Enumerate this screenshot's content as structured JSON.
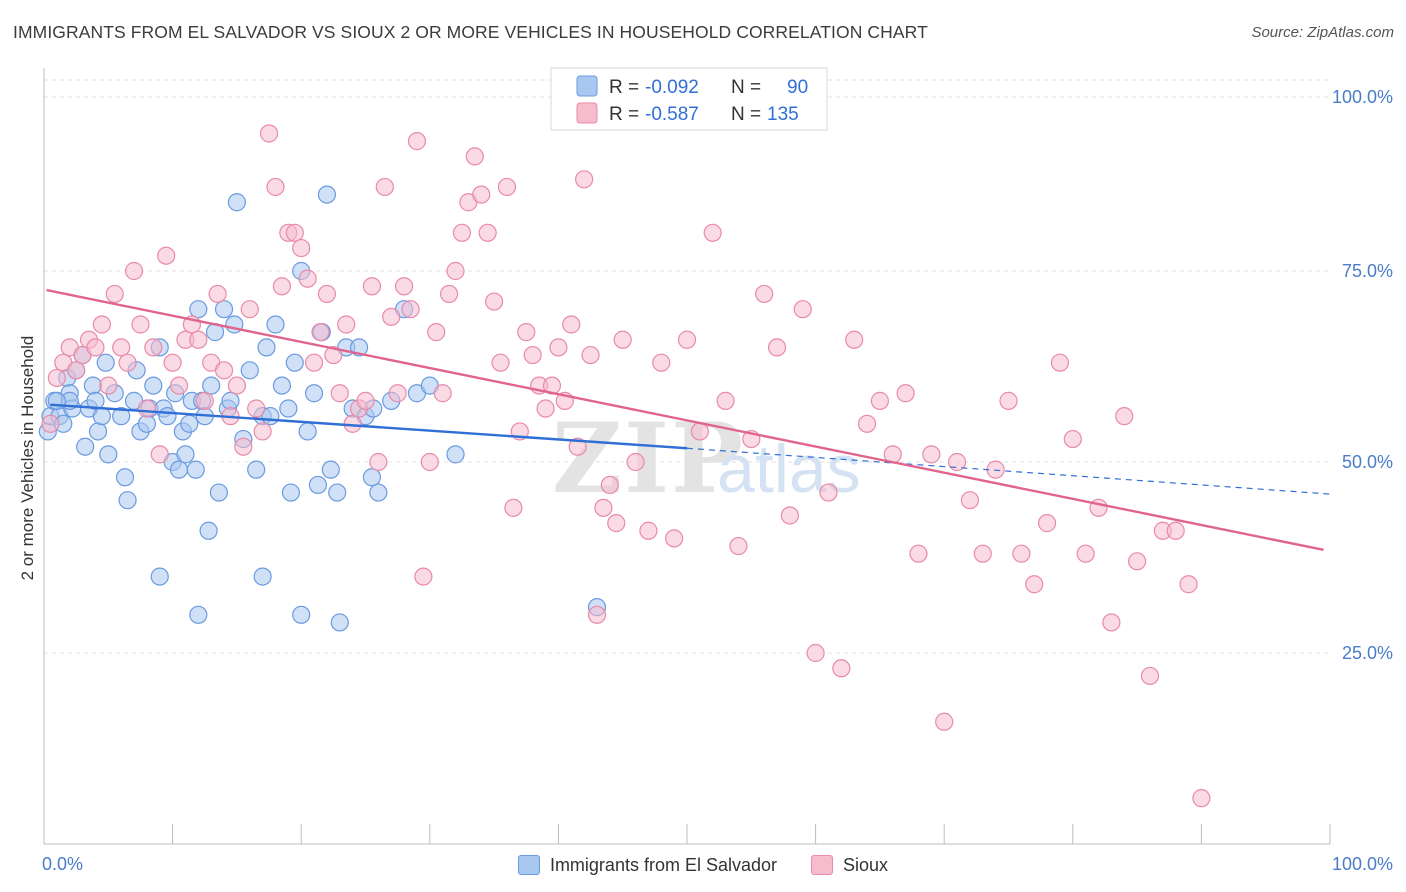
{
  "title": "IMMIGRANTS FROM EL SALVADOR VS SIOUX 2 OR MORE VEHICLES IN HOUSEHOLD CORRELATION CHART",
  "source": "Source: ZipAtlas.com",
  "watermark": {
    "zip": "ZIP",
    "atlas": "atlas"
  },
  "legend": {
    "r_label": "R =",
    "n_label": "N =",
    "entries": [
      {
        "r": "-0.092",
        "n": "90",
        "color": "#a9c8f0",
        "stroke": "#6a9ae0"
      },
      {
        "r": "-0.587",
        "n": "135",
        "color": "#f6bccd",
        "stroke": "#e98aa8"
      }
    ]
  },
  "chart_data": {
    "type": "scatter",
    "ylabel": "2 or more Vehicles in Household",
    "xlim": [
      0,
      100
    ],
    "ylim": [
      0,
      100
    ],
    "x_tick_labels": [
      "0.0%",
      "100.0%"
    ],
    "y_ticks": [
      {
        "value": 25,
        "label": "25.0%"
      },
      {
        "value": 50,
        "label": "50.0%"
      },
      {
        "value": 75,
        "label": "75.0%"
      },
      {
        "value": 100,
        "label": "100.0%"
      }
    ],
    "grid": true,
    "series": [
      {
        "name": "Immigrants from El Salvador",
        "color": "#a9c8f0",
        "stroke": "#6a9ae0",
        "line_color": "#2f6fd6",
        "trend": {
          "x0": 0.5,
          "y0": 57.5,
          "x1": 50,
          "y1": 51.8,
          "dash_to_x": 100,
          "dash_to_y": 45.8
        },
        "points": [
          [
            0.3,
            54
          ],
          [
            0.5,
            56
          ],
          [
            0.8,
            58
          ],
          [
            1.2,
            56
          ],
          [
            1.5,
            55
          ],
          [
            1.8,
            61
          ],
          [
            2.0,
            59
          ],
          [
            2.2,
            57
          ],
          [
            2.5,
            62
          ],
          [
            3.0,
            64
          ],
          [
            3.2,
            52
          ],
          [
            3.5,
            57
          ],
          [
            3.8,
            60
          ],
          [
            4.0,
            58
          ],
          [
            4.2,
            54
          ],
          [
            4.5,
            56
          ],
          [
            4.8,
            63
          ],
          [
            5.0,
            51
          ],
          [
            5.5,
            59
          ],
          [
            6.0,
            56
          ],
          [
            6.3,
            48
          ],
          [
            6.5,
            45
          ],
          [
            7.0,
            58
          ],
          [
            7.2,
            62
          ],
          [
            7.5,
            54
          ],
          [
            8.0,
            55
          ],
          [
            8.2,
            57
          ],
          [
            8.5,
            60
          ],
          [
            9.0,
            65
          ],
          [
            9.3,
            57
          ],
          [
            9.6,
            56
          ],
          [
            10.0,
            50
          ],
          [
            10.2,
            59
          ],
          [
            10.5,
            49
          ],
          [
            10.8,
            54
          ],
          [
            11.0,
            51
          ],
          [
            11.3,
            55
          ],
          [
            11.5,
            58
          ],
          [
            11.8,
            49
          ],
          [
            12.0,
            70
          ],
          [
            12.3,
            58
          ],
          [
            12.5,
            56
          ],
          [
            12.8,
            41
          ],
          [
            13.0,
            60
          ],
          [
            13.3,
            67
          ],
          [
            13.6,
            46
          ],
          [
            14.0,
            70
          ],
          [
            14.3,
            57
          ],
          [
            14.5,
            58
          ],
          [
            14.8,
            68
          ],
          [
            15.0,
            84
          ],
          [
            15.5,
            53
          ],
          [
            16.0,
            62
          ],
          [
            16.5,
            49
          ],
          [
            17.0,
            56
          ],
          [
            17.3,
            65
          ],
          [
            17.6,
            56
          ],
          [
            18.0,
            68
          ],
          [
            18.5,
            60
          ],
          [
            19.0,
            57
          ],
          [
            19.2,
            46
          ],
          [
            19.5,
            63
          ],
          [
            20.0,
            75
          ],
          [
            20.5,
            54
          ],
          [
            21.0,
            59
          ],
          [
            21.3,
            47
          ],
          [
            21.6,
            67
          ],
          [
            22.0,
            85
          ],
          [
            22.3,
            49
          ],
          [
            22.8,
            46
          ],
          [
            23.5,
            65
          ],
          [
            24.0,
            57
          ],
          [
            24.5,
            65
          ],
          [
            25.0,
            56
          ],
          [
            25.5,
            48
          ],
          [
            26.0,
            46
          ],
          [
            27.0,
            58
          ],
          [
            28.0,
            70
          ],
          [
            29.0,
            59
          ],
          [
            30.0,
            60
          ],
          [
            25.6,
            57
          ],
          [
            12.0,
            30
          ],
          [
            9.0,
            35
          ],
          [
            17.0,
            35
          ],
          [
            20.0,
            30
          ],
          [
            23.0,
            29
          ],
          [
            32.0,
            51
          ],
          [
            43.0,
            31
          ],
          [
            2.0,
            58
          ],
          [
            1.0,
            58
          ]
        ]
      },
      {
        "name": "Sioux",
        "color": "#f6bccd",
        "stroke": "#e98aa8",
        "line_color": "#e0648c",
        "trend": {
          "x0": 0.2,
          "y0": 72.5,
          "x1": 99.5,
          "y1": 38.5
        },
        "points": [
          [
            0.5,
            55
          ],
          [
            1.0,
            61
          ],
          [
            1.5,
            63
          ],
          [
            2.0,
            65
          ],
          [
            2.5,
            62
          ],
          [
            3.0,
            64
          ],
          [
            3.5,
            66
          ],
          [
            4.0,
            65
          ],
          [
            4.5,
            68
          ],
          [
            5.0,
            60
          ],
          [
            5.5,
            72
          ],
          [
            6.0,
            65
          ],
          [
            6.5,
            63
          ],
          [
            7.0,
            75
          ],
          [
            7.5,
            68
          ],
          [
            8.0,
            57
          ],
          [
            8.5,
            65
          ],
          [
            9.0,
            51
          ],
          [
            9.5,
            77
          ],
          [
            10.0,
            63
          ],
          [
            10.5,
            60
          ],
          [
            11.0,
            66
          ],
          [
            11.5,
            68
          ],
          [
            12.0,
            66
          ],
          [
            12.5,
            58
          ],
          [
            13.0,
            63
          ],
          [
            13.5,
            72
          ],
          [
            14.0,
            62
          ],
          [
            14.5,
            56
          ],
          [
            15.0,
            60
          ],
          [
            15.5,
            52
          ],
          [
            16.0,
            70
          ],
          [
            16.5,
            57
          ],
          [
            17.0,
            54
          ],
          [
            17.5,
            93
          ],
          [
            18.0,
            86
          ],
          [
            18.5,
            73
          ],
          [
            19.0,
            80
          ],
          [
            19.5,
            80
          ],
          [
            20.0,
            78
          ],
          [
            20.5,
            74
          ],
          [
            21.0,
            63
          ],
          [
            21.5,
            67
          ],
          [
            22.0,
            72
          ],
          [
            22.5,
            64
          ],
          [
            23.0,
            59
          ],
          [
            23.5,
            68
          ],
          [
            24.0,
            55
          ],
          [
            24.5,
            57
          ],
          [
            25.0,
            58
          ],
          [
            25.5,
            73
          ],
          [
            26.0,
            50
          ],
          [
            26.5,
            86
          ],
          [
            27.0,
            69
          ],
          [
            27.5,
            59
          ],
          [
            28.0,
            73
          ],
          [
            28.5,
            70
          ],
          [
            29.0,
            92
          ],
          [
            29.5,
            35
          ],
          [
            30.0,
            50
          ],
          [
            30.5,
            67
          ],
          [
            31.0,
            59
          ],
          [
            31.5,
            72
          ],
          [
            32.0,
            75
          ],
          [
            32.5,
            80
          ],
          [
            33.0,
            84
          ],
          [
            33.5,
            90
          ],
          [
            34.0,
            85
          ],
          [
            34.5,
            80
          ],
          [
            35.0,
            71
          ],
          [
            35.5,
            63
          ],
          [
            36.0,
            86
          ],
          [
            36.5,
            44
          ],
          [
            37.0,
            54
          ],
          [
            37.5,
            67
          ],
          [
            38.0,
            64
          ],
          [
            38.5,
            60
          ],
          [
            39.0,
            57
          ],
          [
            39.5,
            60
          ],
          [
            40.0,
            65
          ],
          [
            40.5,
            58
          ],
          [
            41.0,
            68
          ],
          [
            41.5,
            52
          ],
          [
            42.0,
            87
          ],
          [
            42.5,
            64
          ],
          [
            43.0,
            30
          ],
          [
            43.5,
            44
          ],
          [
            44.0,
            47
          ],
          [
            44.5,
            42
          ],
          [
            45.0,
            66
          ],
          [
            46.0,
            50
          ],
          [
            47.0,
            41
          ],
          [
            48.0,
            63
          ],
          [
            49.0,
            40
          ],
          [
            50.0,
            66
          ],
          [
            51.0,
            54
          ],
          [
            52.0,
            80
          ],
          [
            53.0,
            58
          ],
          [
            54.0,
            39
          ],
          [
            55.0,
            53
          ],
          [
            56.0,
            72
          ],
          [
            57.0,
            65
          ],
          [
            58.0,
            43
          ],
          [
            59.0,
            70
          ],
          [
            60.0,
            25
          ],
          [
            61.0,
            46
          ],
          [
            62.0,
            23
          ],
          [
            63.0,
            66
          ],
          [
            64.0,
            55
          ],
          [
            65.0,
            58
          ],
          [
            66.0,
            51
          ],
          [
            67.0,
            59
          ],
          [
            68.0,
            38
          ],
          [
            69.0,
            51
          ],
          [
            70.0,
            16
          ],
          [
            71.0,
            50
          ],
          [
            72.0,
            45
          ],
          [
            73.0,
            38
          ],
          [
            74.0,
            49
          ],
          [
            75.0,
            58
          ],
          [
            76.0,
            38
          ],
          [
            77.0,
            34
          ],
          [
            78.0,
            42
          ],
          [
            79.0,
            63
          ],
          [
            80.0,
            53
          ],
          [
            81.0,
            38
          ],
          [
            82.0,
            44
          ],
          [
            83.0,
            29
          ],
          [
            84.0,
            56
          ],
          [
            85.0,
            37
          ],
          [
            86.0,
            22
          ],
          [
            87.0,
            41
          ],
          [
            88.0,
            41
          ],
          [
            89.0,
            34
          ],
          [
            90.0,
            6
          ]
        ]
      }
    ]
  },
  "bottom_legend": [
    {
      "label": "Immigrants from El Salvador",
      "color": "#a9c8f0",
      "stroke": "#6a9ae0"
    },
    {
      "label": "Sioux",
      "color": "#f6bccd",
      "stroke": "#e98aa8"
    }
  ]
}
